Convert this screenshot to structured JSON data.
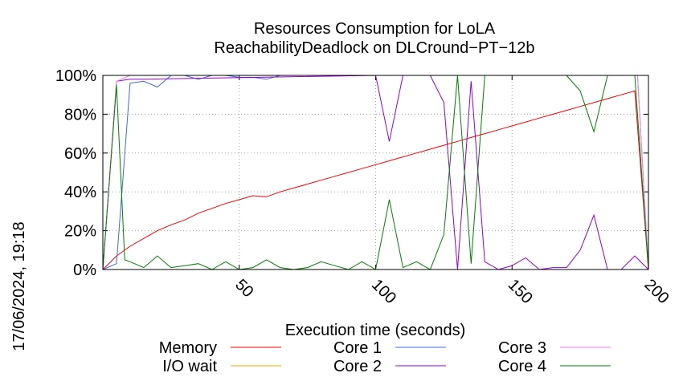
{
  "timestamp": "17/06/2024, 19:18",
  "chart_data": {
    "type": "line",
    "title_line1": "Resources Consumption for LoLA",
    "title_line2": "ReachabilityDeadlock on DLCround−PT−12b",
    "xlabel": "Execution time (seconds)",
    "ylabel": "",
    "xlim": [
      0,
      200
    ],
    "ylim": [
      0,
      100
    ],
    "xticks": [
      50,
      100,
      150,
      200
    ],
    "xtick_labels": [
      "50",
      "100",
      "150",
      "200"
    ],
    "yticks": [
      0,
      20,
      40,
      60,
      80,
      100
    ],
    "ytick_labels": [
      "0%",
      "20%",
      "40%",
      "60%",
      "80%",
      "100%"
    ],
    "grid": true,
    "legend_position": "bottom",
    "series": [
      {
        "name": "Memory",
        "color": "#ff0000",
        "x": [
          0,
          5,
          10,
          15,
          20,
          25,
          30,
          35,
          40,
          45,
          50,
          55,
          60,
          65,
          70,
          75,
          80,
          85,
          90,
          95,
          100,
          105,
          110,
          115,
          120,
          125,
          130,
          135,
          140,
          145,
          150,
          155,
          160,
          165,
          170,
          175,
          180,
          185,
          190,
          195,
          200
        ],
        "y": [
          0,
          7,
          12,
          16,
          20,
          23,
          25.5,
          29,
          31.5,
          34,
          36,
          38,
          37.5,
          40,
          42,
          44,
          46,
          48,
          50,
          52,
          54,
          56,
          58,
          60,
          62,
          64,
          66,
          68,
          70,
          72,
          74,
          76,
          78,
          80,
          82,
          84,
          86,
          88,
          90,
          92,
          0
        ]
      },
      {
        "name": "I/O wait",
        "color": "#ffa500",
        "x": [
          0,
          200
        ],
        "y": [
          0,
          0
        ]
      },
      {
        "name": "Core 1",
        "color": "#4169e1",
        "x": [
          0,
          5,
          10,
          15,
          20,
          25,
          30,
          35,
          40,
          45,
          50,
          55,
          60,
          65,
          70,
          196,
          200
        ],
        "y": [
          0,
          3,
          96,
          97,
          94,
          100,
          100,
          98,
          100,
          100,
          99,
          99,
          98,
          100,
          100,
          100,
          0
        ]
      },
      {
        "name": "Core 2",
        "color": "#9400d3",
        "x": [
          0,
          5,
          10,
          15,
          100,
          105,
          110,
          120,
          125,
          130,
          135,
          140,
          145,
          150,
          155,
          160,
          165,
          170,
          175,
          180,
          185,
          190,
          195,
          200
        ],
        "y": [
          0,
          97,
          98,
          98,
          100,
          66,
          100,
          100,
          86,
          0,
          97,
          4,
          0,
          2,
          6,
          0,
          1,
          1,
          10,
          28,
          0,
          0,
          7,
          0
        ]
      },
      {
        "name": "Core 3",
        "color": "#ee82ee",
        "x": [
          0,
          5,
          10,
          196,
          200
        ],
        "y": [
          0,
          97,
          100,
          100,
          0
        ]
      },
      {
        "name": "Core 4",
        "color": "#008000",
        "x": [
          0,
          5,
          8,
          10,
          15,
          20,
          25,
          30,
          35,
          40,
          45,
          50,
          55,
          60,
          65,
          70,
          75,
          80,
          85,
          90,
          95,
          100,
          105,
          110,
          115,
          120,
          125,
          130,
          135,
          140,
          145,
          150,
          155,
          160,
          165,
          170,
          175,
          180,
          185,
          190,
          195,
          200
        ],
        "y": [
          0,
          95,
          5,
          4,
          1,
          7,
          1,
          2,
          3,
          0,
          4,
          0,
          1,
          5,
          1,
          0,
          1,
          4,
          2,
          0,
          4,
          0,
          36,
          1,
          4,
          0,
          18,
          100,
          3,
          100,
          100,
          100,
          100,
          100,
          100,
          100,
          92,
          71,
          100,
          100,
          100,
          0
        ]
      }
    ]
  }
}
